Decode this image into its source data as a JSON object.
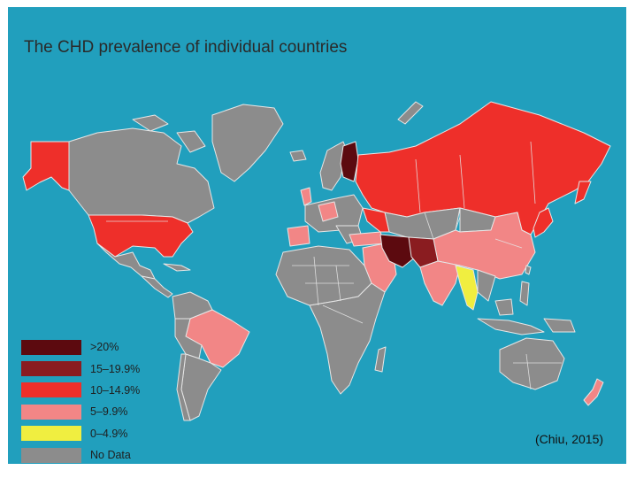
{
  "title": "The CHD prevalence of individual countries",
  "citation": "(Chiu, 2015)",
  "colors": {
    "ocean": "#219fbd",
    "gt20": "#5c0a0f",
    "p15": "#8a1c20",
    "p10": "#ee2f2a",
    "p5": "#f28686",
    "p0": "#f0ee40",
    "nodata": "#8c8c8c",
    "border": "#e6e6e6"
  },
  "legend": [
    {
      "label": ">20%",
      "color": "#5c0a0f"
    },
    {
      "label": "15–19.9%",
      "color": "#8a1c20"
    },
    {
      "label": "10–14.9%",
      "color": "#ee2f2a"
    },
    {
      "label": "5–9.9%",
      "color": "#f28686"
    },
    {
      "label": "0–4.9%",
      "color": "#f0ee40"
    },
    {
      "label": "No Data",
      "color": "#8c8c8c"
    }
  ]
}
